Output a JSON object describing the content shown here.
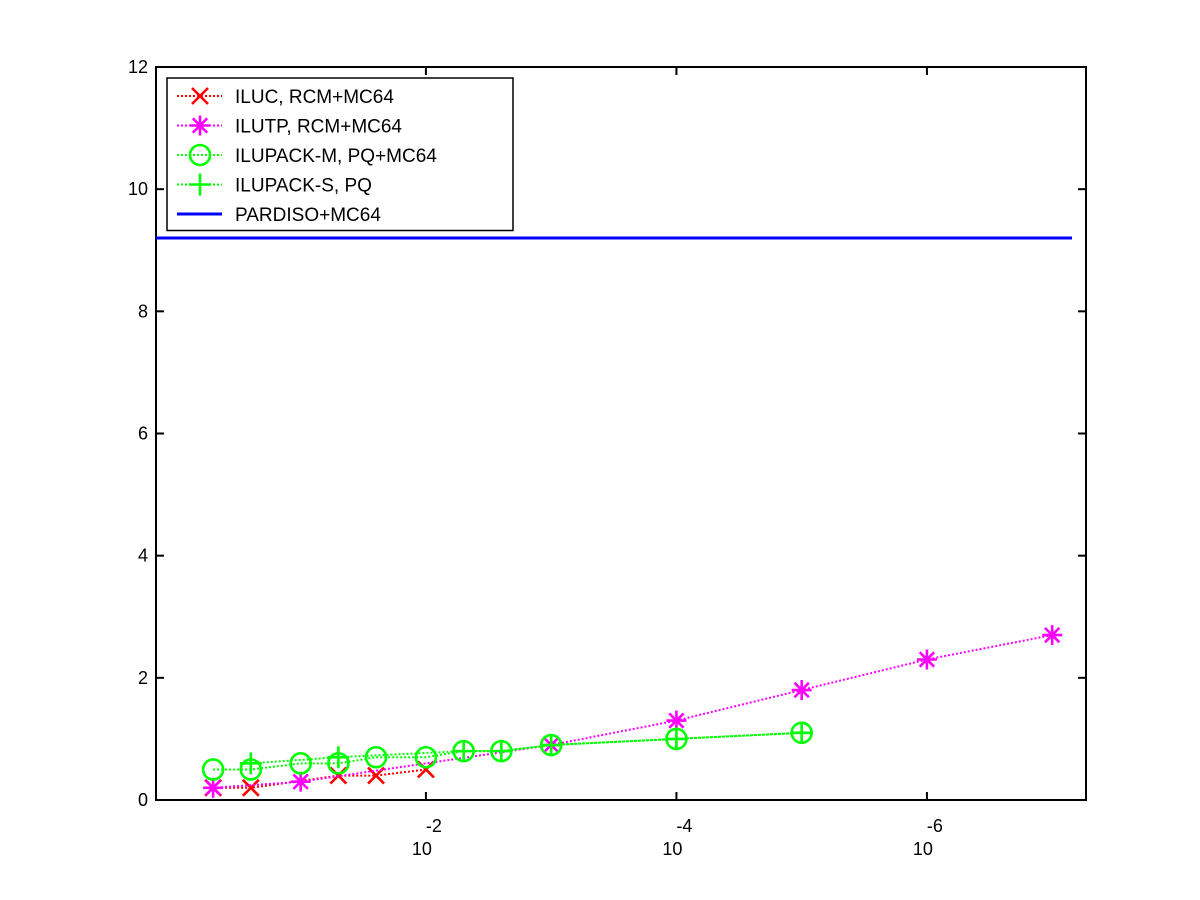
{
  "chart_data": {
    "type": "line",
    "x_scale": "log",
    "x_reversed": true,
    "x_ticks": [
      {
        "value": 0.01,
        "base": "10",
        "exponent": "-2"
      },
      {
        "value": 0.0001,
        "base": "10",
        "exponent": "-4"
      },
      {
        "value": 1e-06,
        "base": "10",
        "exponent": "-6"
      }
    ],
    "ylim": [
      0,
      12
    ],
    "y_ticks": [
      0,
      2,
      4,
      6,
      8,
      10,
      12
    ],
    "grid": false,
    "legend_position": "top-left",
    "series": [
      {
        "name": "ILUC, RCM+MC64",
        "color": "#ff0000",
        "marker": "x",
        "line": "dotted",
        "points": [
          [
            0.5,
            0.2
          ],
          [
            0.25,
            0.2
          ],
          [
            0.05,
            0.4
          ],
          [
            0.025,
            0.4
          ],
          [
            0.01,
            0.5
          ]
        ]
      },
      {
        "name": "ILUTP, RCM+MC64",
        "color": "#ff00ff",
        "marker": "asterisk",
        "line": "dotted",
        "points": [
          [
            0.5,
            0.2
          ],
          [
            0.1,
            0.3
          ],
          [
            0.001,
            0.9
          ],
          [
            0.0001,
            1.3
          ],
          [
            1e-05,
            1.8
          ],
          [
            1e-06,
            2.3
          ],
          [
            1e-07,
            2.7
          ]
        ]
      },
      {
        "name": "ILUPACK-M, PQ+MC64",
        "color": "#00ff00",
        "marker": "circle",
        "line": "dotted",
        "points": [
          [
            0.5,
            0.5
          ],
          [
            0.25,
            0.5
          ],
          [
            0.1,
            0.6
          ],
          [
            0.05,
            0.6
          ],
          [
            0.025,
            0.7
          ],
          [
            0.01,
            0.7
          ],
          [
            0.005,
            0.8
          ],
          [
            0.0025,
            0.8
          ],
          [
            0.001,
            0.9
          ],
          [
            0.0001,
            1.0
          ],
          [
            1e-05,
            1.1
          ]
        ]
      },
      {
        "name": "ILUPACK-S, PQ",
        "color": "#00ff00",
        "marker": "plus",
        "line": "dotted",
        "points": [
          [
            0.25,
            0.6
          ],
          [
            0.05,
            0.7
          ],
          [
            0.005,
            0.8
          ],
          [
            0.0025,
            0.8
          ],
          [
            0.001,
            0.9
          ],
          [
            0.0001,
            1.0
          ],
          [
            1e-05,
            1.1
          ]
        ]
      },
      {
        "name": "PARDISO+MC64",
        "color": "#0000ff",
        "marker": "none",
        "line": "solid",
        "constant": 9.2
      }
    ]
  }
}
